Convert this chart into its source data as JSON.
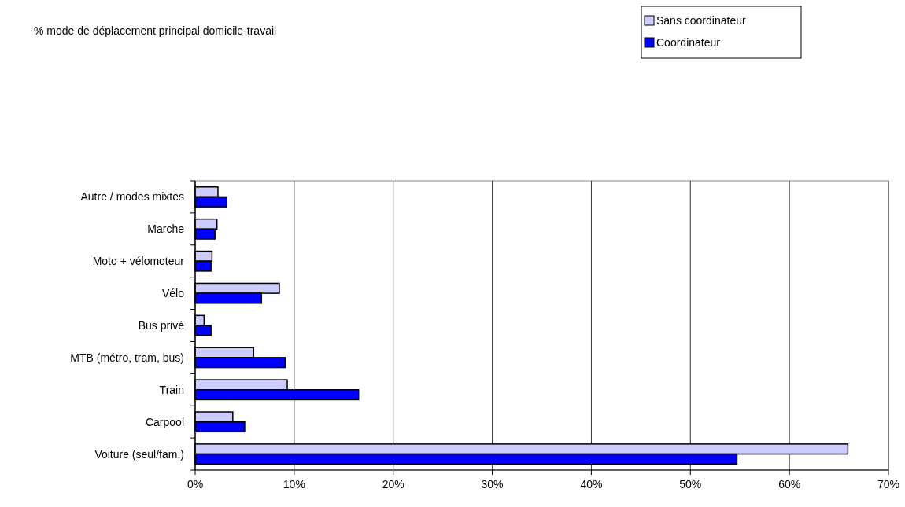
{
  "chart_data": {
    "type": "bar",
    "orientation": "horizontal",
    "title": "% mode de déplacement principal domicile-travail",
    "categories": [
      "Autre / modes mixtes",
      "Marche",
      "Moto + vélomoteur",
      "Vélo",
      "Bus privé",
      "MTB (métro, tram, bus)",
      "Train",
      "Carpool",
      "Voiture (seul/fam.)"
    ],
    "series": [
      {
        "name": "Sans coordinateur",
        "color": "#ccccff",
        "values": [
          2.3,
          2.2,
          1.7,
          8.5,
          0.9,
          5.9,
          9.3,
          3.8,
          65.9
        ]
      },
      {
        "name": "Coordinateur",
        "color": "#0000ff",
        "values": [
          3.2,
          2.0,
          1.6,
          6.7,
          1.6,
          9.1,
          16.5,
          5.0,
          54.7
        ]
      }
    ],
    "xlim": [
      0,
      70
    ],
    "xticks": [
      {
        "value": 0,
        "label": "0%"
      },
      {
        "value": 10,
        "label": "10%"
      },
      {
        "value": 20,
        "label": "20%"
      },
      {
        "value": 30,
        "label": "30%"
      },
      {
        "value": 40,
        "label": "40%"
      },
      {
        "value": 50,
        "label": "50%"
      },
      {
        "value": 60,
        "label": "60%"
      },
      {
        "value": 70,
        "label": "70%"
      }
    ],
    "grid": "x",
    "legend": "top right"
  }
}
